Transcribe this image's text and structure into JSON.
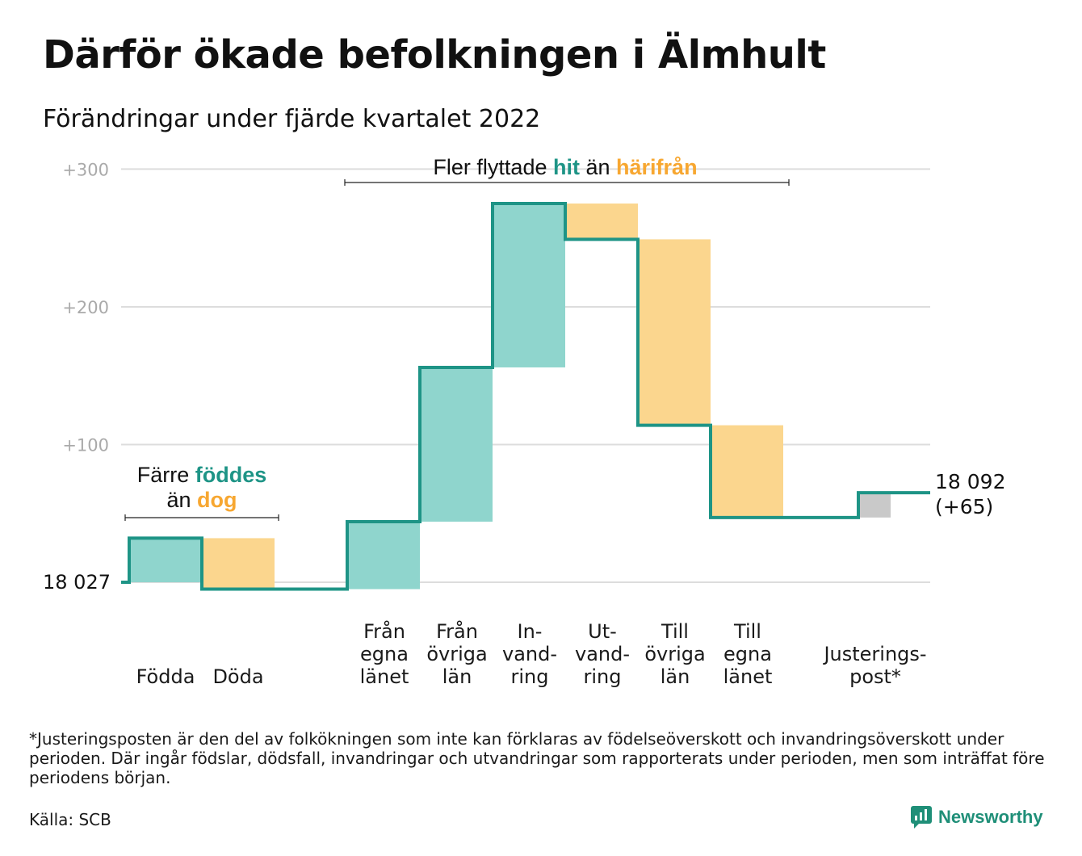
{
  "title": "Därför ökade befolkningen i Älmhult",
  "subtitle": "Förändringar under fjärde kvartalet 2022",
  "colors": {
    "teal": "#1e9486",
    "teal_fill": "#8fd5cd",
    "orange": "#f7a731",
    "orange_fill": "#fbd68e",
    "gray_fill": "#c9c9c9",
    "grid": "#dddddd",
    "tick": "#aaaaaa"
  },
  "chart_data": {
    "type": "waterfall",
    "title": "Därför ökade befolkningen i Älmhult",
    "start_value": 18027,
    "start_label": "18 027",
    "end_value": 18092,
    "end_label": "18 092",
    "end_change_label": "(+65)",
    "y_axis": {
      "unit": "change from 18 027",
      "ylim": [
        0,
        300
      ],
      "ticks": [
        {
          "value": 100,
          "label": "+100"
        },
        {
          "value": 200,
          "label": "+200"
        },
        {
          "value": 300,
          "label": "+300"
        }
      ],
      "grid": true
    },
    "steps": [
      {
        "key": "fodda",
        "label_lines": [
          "Födda"
        ],
        "change": 32,
        "kind": "in"
      },
      {
        "key": "doda",
        "label_lines": [
          "Döda"
        ],
        "change": -37,
        "kind": "out"
      },
      {
        "key": "fran_egna",
        "label_lines": [
          "Från",
          "egna",
          "länet"
        ],
        "change": 49,
        "kind": "in"
      },
      {
        "key": "fran_ovriga",
        "label_lines": [
          "Från",
          "övriga",
          "län"
        ],
        "change": 112,
        "kind": "in"
      },
      {
        "key": "invandring",
        "label_lines": [
          "In-",
          "vand-",
          "ring"
        ],
        "change": 119,
        "kind": "in"
      },
      {
        "key": "utvandring",
        "label_lines": [
          "Ut-",
          "vand-",
          "ring"
        ],
        "change": -26,
        "kind": "out"
      },
      {
        "key": "till_ovriga",
        "label_lines": [
          "Till",
          "övriga",
          "län"
        ],
        "change": -135,
        "kind": "out"
      },
      {
        "key": "till_egna",
        "label_lines": [
          "Till",
          "egna",
          "länet"
        ],
        "change": -67,
        "kind": "out"
      },
      {
        "key": "justering",
        "label_lines": [
          "Justerings-",
          "post*"
        ],
        "change": 18,
        "kind": "adjust"
      }
    ],
    "annotations": [
      {
        "key": "births",
        "lines": [
          [
            "Färre ",
            "föddes",
            ""
          ],
          [
            "än ",
            "dog",
            ""
          ]
        ]
      },
      {
        "key": "migration",
        "lines": [
          [
            "Fler flyttade ",
            "hit",
            " än ",
            "härifrån"
          ]
        ]
      }
    ]
  },
  "footnote": "*Justeringsposten är den del av folkökningen som inte kan förklaras av födelseöverskott och invandringsöverskott under perioden. Där ingår födslar, dödsfall, invandringar och utvandringar som rapporterats under perioden, men som inträffat före periodens början.",
  "source": "Källa: SCB",
  "brand": {
    "name": "Newsworthy",
    "icon": "newsworthy-logo-icon"
  }
}
